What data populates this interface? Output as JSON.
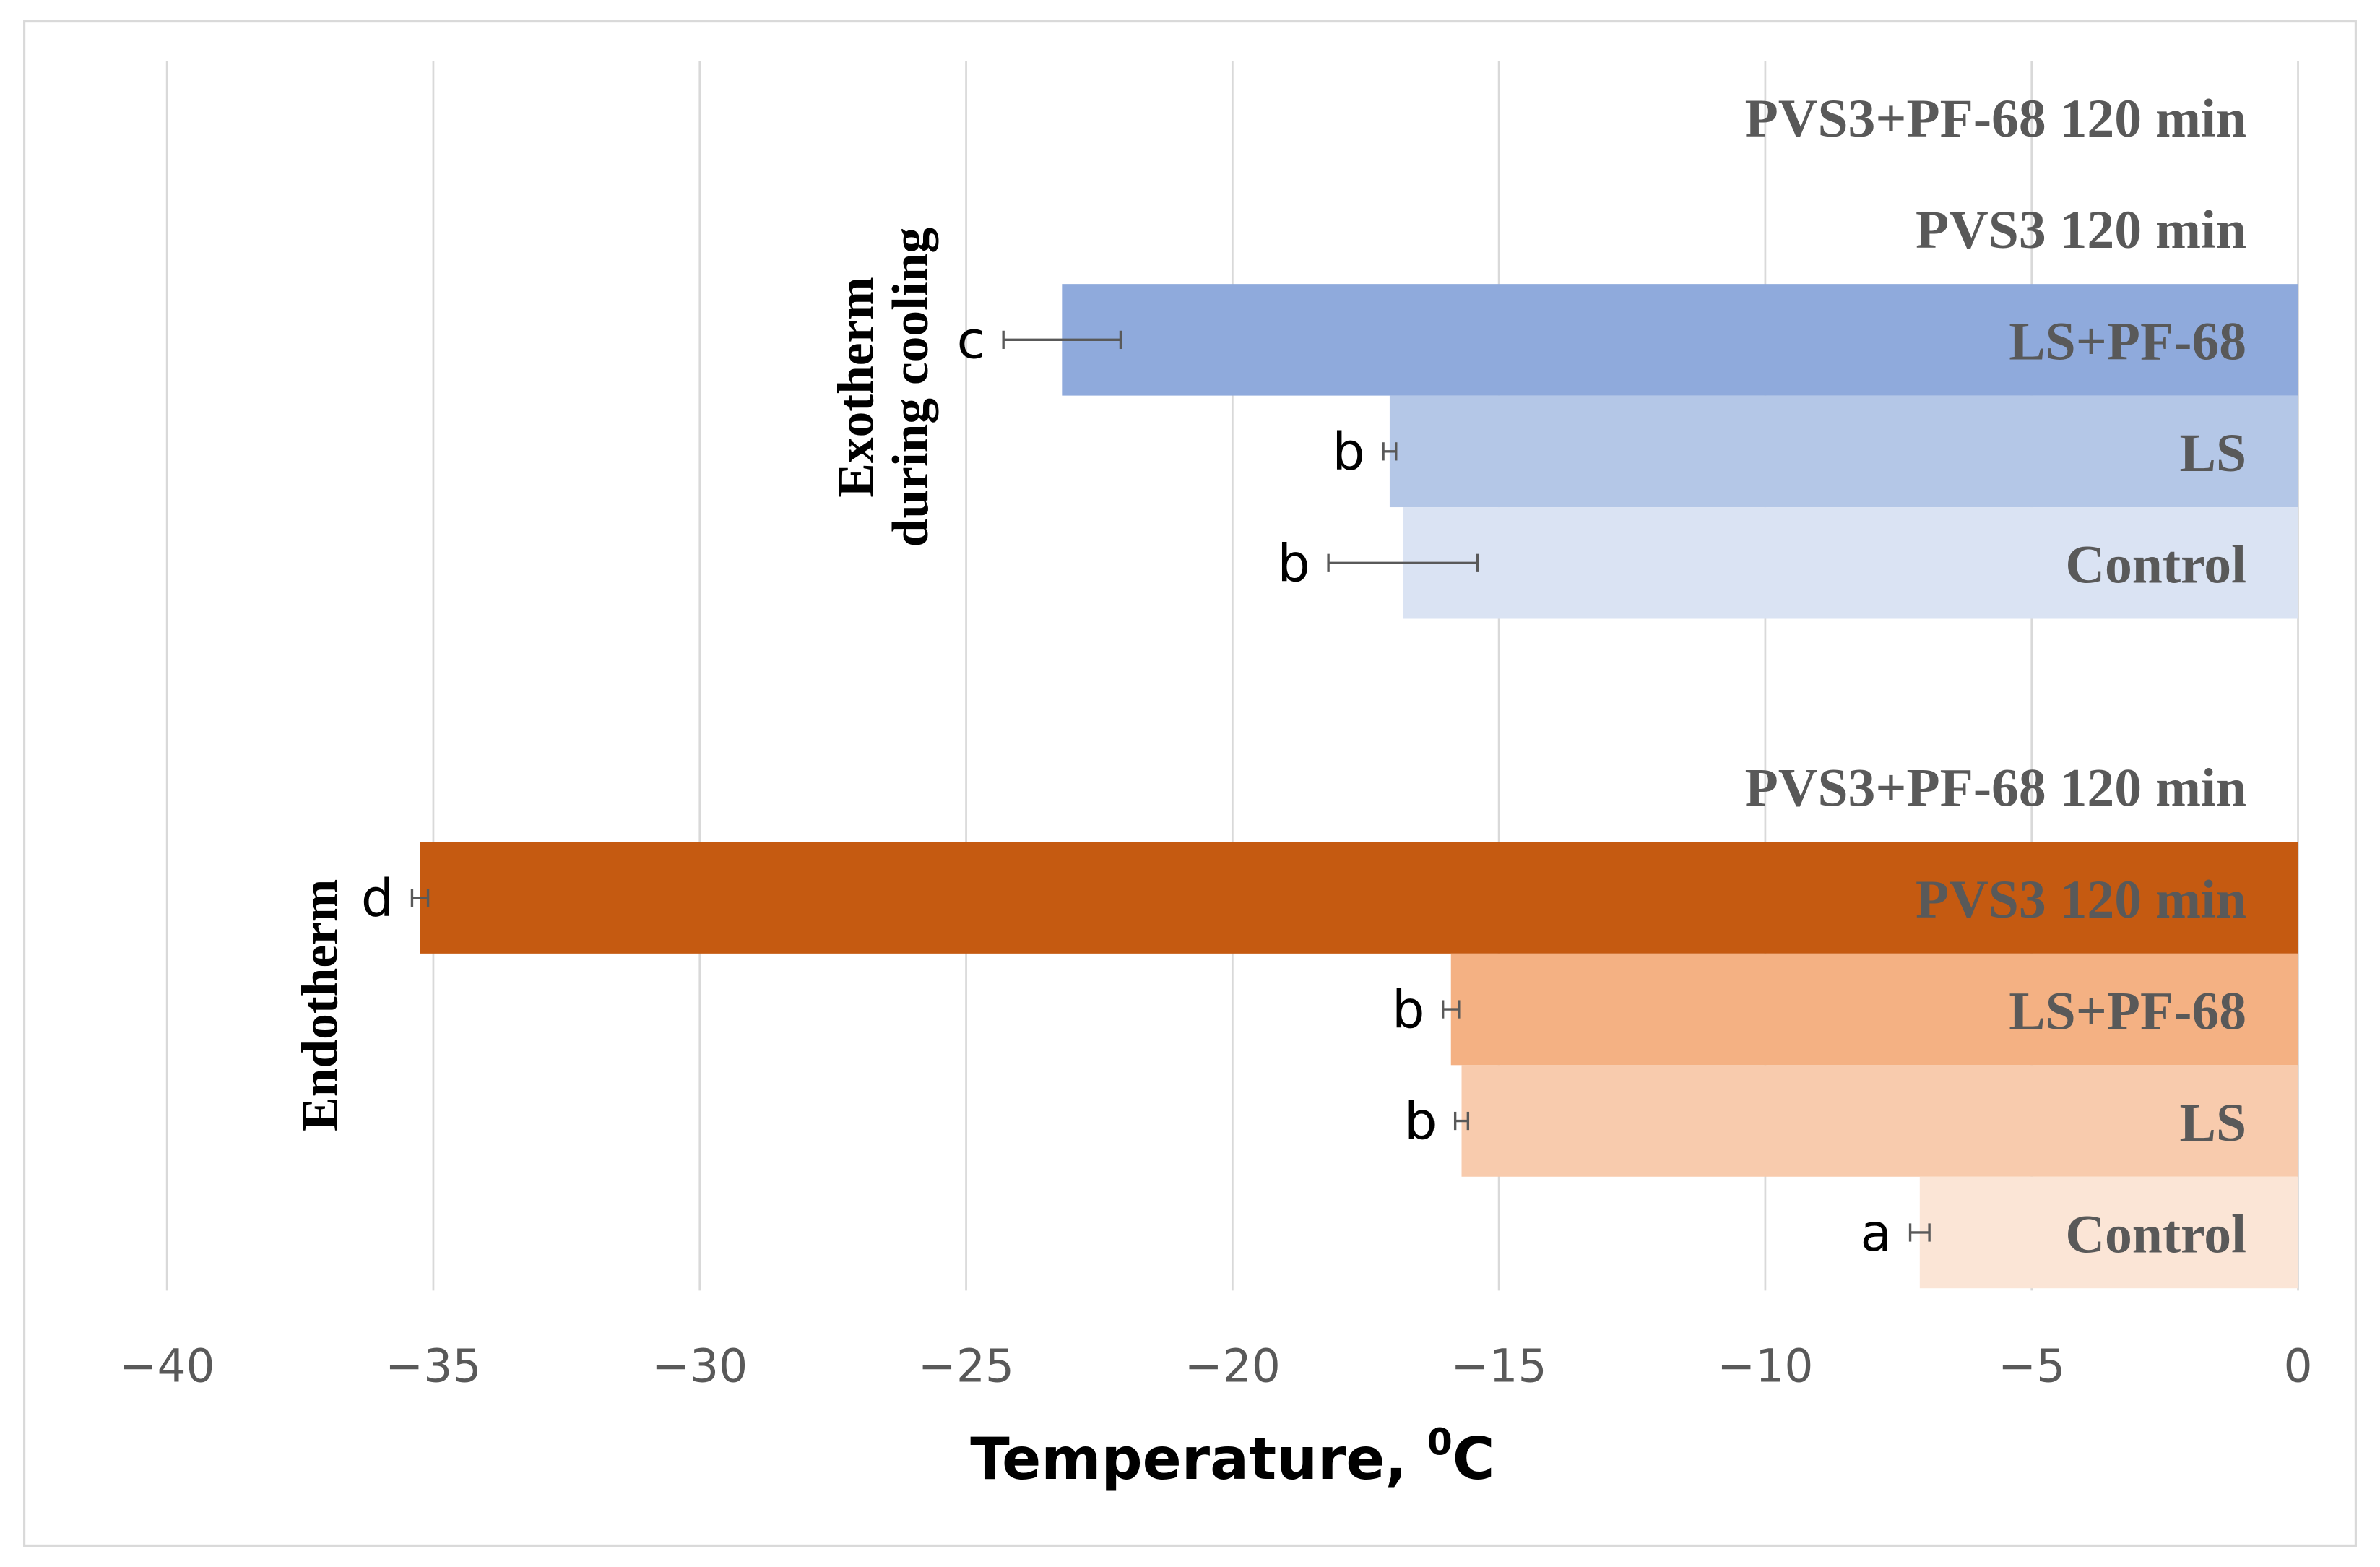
{
  "chart_data": {
    "type": "bar",
    "orientation": "horizontal",
    "xlabel": "Temperature, ",
    "xlabel_sup": "0",
    "xlabel_unit": "C",
    "xlim": [
      -40,
      0
    ],
    "xticks": [
      "−40",
      "−35",
      "−30",
      "−25",
      "−20",
      "−15",
      "−10",
      "−5",
      "0"
    ],
    "tick_values": [
      -40,
      -35,
      -30,
      -25,
      -20,
      -15,
      -10,
      -5,
      0
    ],
    "grid": true,
    "groups": [
      {
        "name": "Exotherm during cooling",
        "name_lines": [
          "Exotherm",
          "during cooling"
        ],
        "categories": [
          "PVS3+PF-68 120 min",
          "PVS3 120 min",
          "LS+PF-68",
          "LS",
          "Control"
        ],
        "values": [
          null,
          null,
          -23.2,
          -17.05,
          -16.8
        ],
        "errors": [
          null,
          null,
          1.1,
          0.12,
          1.4
        ],
        "letters": [
          "",
          "",
          "c",
          "b",
          "b"
        ],
        "colors": [
          null,
          null,
          "#8faadc",
          "#b4c7e7",
          "#dae3f3"
        ]
      },
      {
        "name": "Endotherm",
        "name_lines": [
          "Endotherm"
        ],
        "categories": [
          "PVS3+PF-68 120 min",
          "PVS3 120 min",
          "LS+PF-68",
          "LS",
          "Control"
        ],
        "values": [
          null,
          -35.25,
          -15.9,
          -15.7,
          -7.1
        ],
        "errors": [
          null,
          0.15,
          0.15,
          0.12,
          0.18
        ],
        "letters": [
          "",
          "d",
          "b",
          "b",
          "a"
        ],
        "colors": [
          null,
          "#c55a11",
          "#f4b183",
          "#f8cbad",
          "#fbe5d6"
        ]
      }
    ]
  }
}
